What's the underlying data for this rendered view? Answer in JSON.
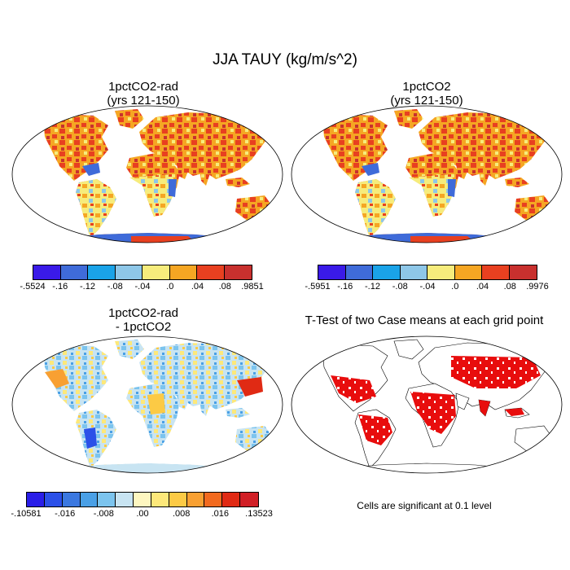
{
  "title": "JJA TAUY (kg/m/s^2)",
  "panels": [
    {
      "title_line1": "1pctCO2-rad",
      "title_line2": "(yrs 121-150)",
      "colorbar": {
        "labels": [
          "-.5524",
          "-.16",
          "-.12",
          "-.08",
          "-.04",
          ".0",
          ".04",
          ".08",
          ".9851"
        ],
        "colors": [
          "#3a1ae8",
          "#3f6bd9",
          "#1aa3e8",
          "#8ec7e8",
          "#f6ec7c",
          "#f5a623",
          "#e84020",
          "#c8302e"
        ]
      }
    },
    {
      "title_line1": "1pctCO2",
      "title_line2": "(yrs 121-150)",
      "colorbar": {
        "labels": [
          "-.5951",
          "-.16",
          "-.12",
          "-.08",
          "-.04",
          ".0",
          ".04",
          ".08",
          ".9976"
        ],
        "colors": [
          "#3a1ae8",
          "#3f6bd9",
          "#1aa3e8",
          "#8ec7e8",
          "#f6ec7c",
          "#f5a623",
          "#e84020",
          "#c8302e"
        ]
      }
    },
    {
      "title_line1": "1pctCO2-rad",
      "title_line2": "- 1pctCO2",
      "colorbar": {
        "labels": [
          "-.10581",
          "-.016",
          "-.008",
          ".00",
          ".008",
          ".016",
          ".13523"
        ],
        "colors": [
          "#2a1ee8",
          "#2b50e8",
          "#3b78e0",
          "#4aa0e6",
          "#7cc4ee",
          "#c8e4f2",
          "#fef7c0",
          "#fde87a",
          "#fcca45",
          "#f8a032",
          "#f26a1f",
          "#e02a14",
          "#d11f26"
        ]
      }
    },
    {
      "title_line1": "T-Test of two Case means at each grid point",
      "title_line2": "",
      "note": "Cells are significant at 0.1 level"
    }
  ]
}
